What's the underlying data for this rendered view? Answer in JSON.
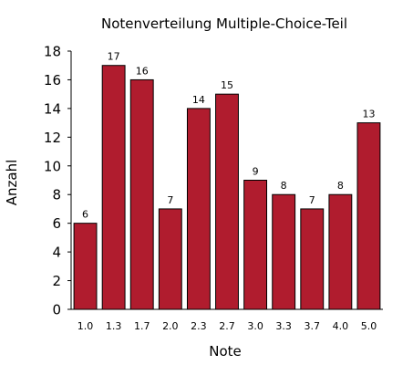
{
  "chart_data": {
    "type": "bar",
    "title": "Notenverteilung Multiple-Choice-Teil",
    "xlabel": "Note",
    "ylabel": "Anzahl",
    "categories": [
      "1.0",
      "1.3",
      "1.7",
      "2.0",
      "2.3",
      "2.7",
      "3.0",
      "3.3",
      "3.7",
      "4.0",
      "5.0"
    ],
    "values": [
      6,
      17,
      16,
      7,
      14,
      15,
      9,
      8,
      7,
      8,
      13
    ],
    "ylim": [
      0,
      18
    ],
    "yticks": [
      0,
      2,
      4,
      6,
      8,
      10,
      12,
      14,
      16,
      18
    ],
    "bar_color": "#b01c2e",
    "grid": false,
    "data_labels": true
  }
}
